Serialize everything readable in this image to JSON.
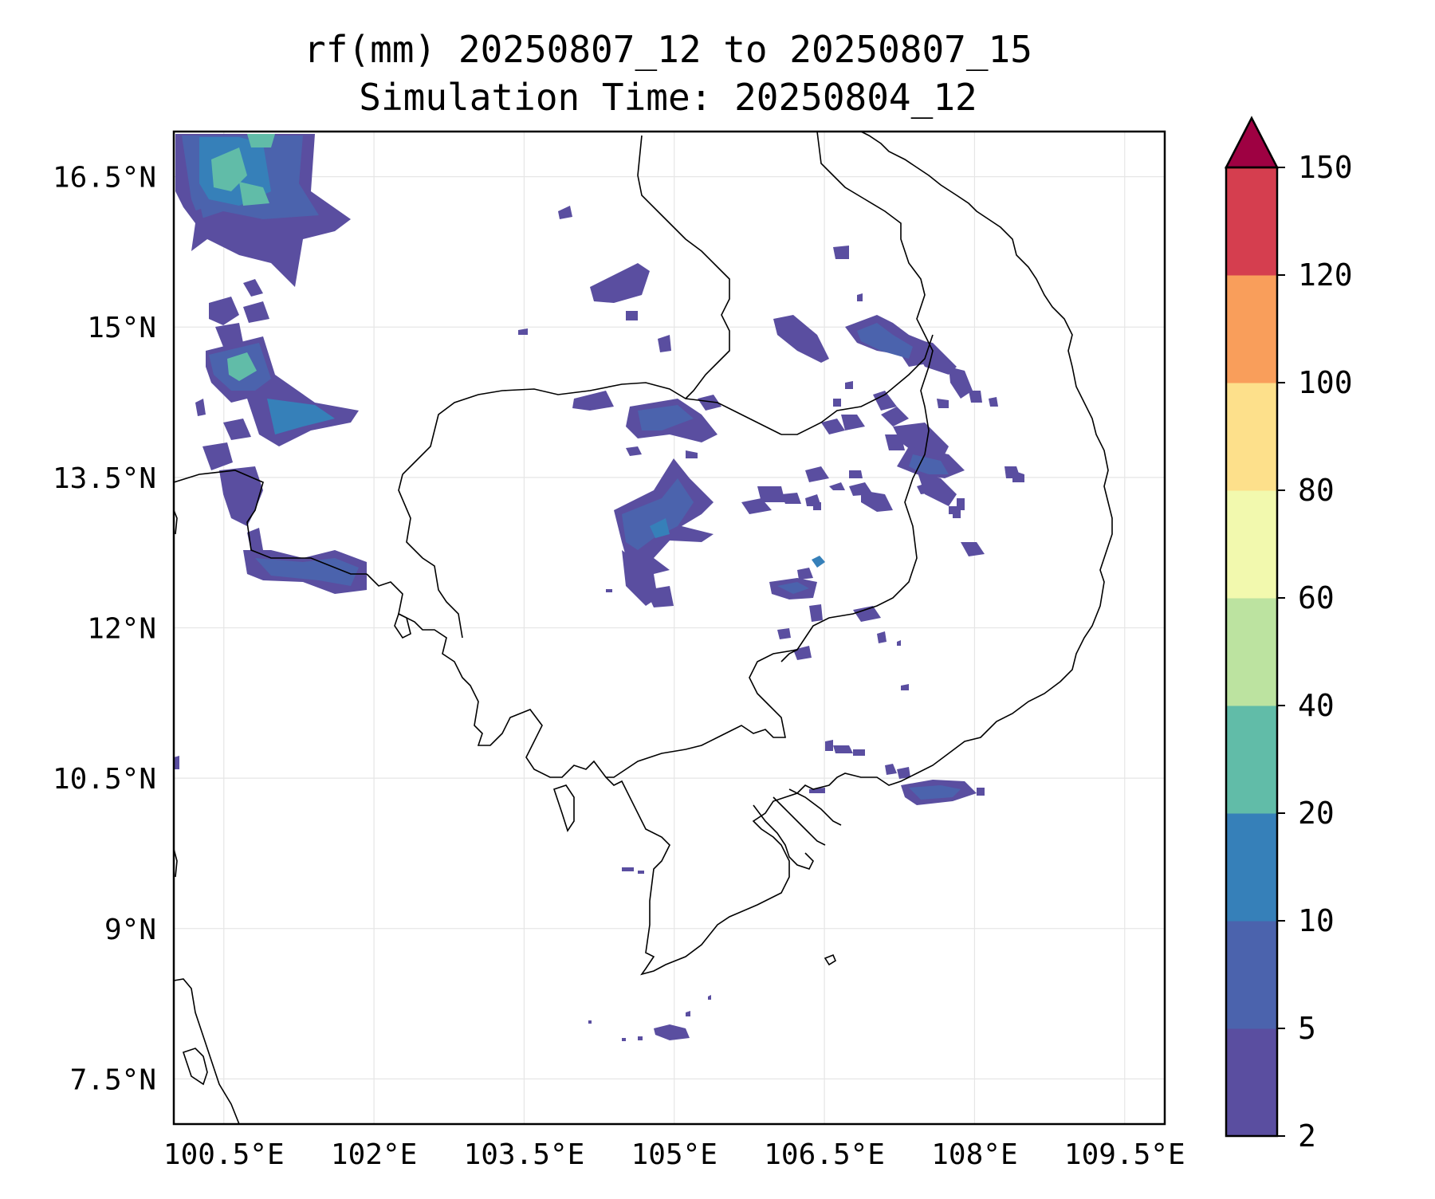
{
  "title_line1": "rf(mm) 20250807_12 to 20250807_15",
  "title_line2": "Simulation Time: 20250804_12",
  "map": {
    "lon_range": [
      100.0,
      109.9
    ],
    "lat_range": [
      7.05,
      16.95
    ],
    "x_ticks": [
      {
        "value": 100.5,
        "label": "100.5°E"
      },
      {
        "value": 102.0,
        "label": "102°E"
      },
      {
        "value": 103.5,
        "label": "103.5°E"
      },
      {
        "value": 105.0,
        "label": "105°E"
      },
      {
        "value": 106.5,
        "label": "106.5°E"
      },
      {
        "value": 108.0,
        "label": "108°E"
      },
      {
        "value": 109.5,
        "label": "109.5°E"
      }
    ],
    "y_ticks": [
      {
        "value": 16.5,
        "label": "16.5°N"
      },
      {
        "value": 15.0,
        "label": "15°N"
      },
      {
        "value": 13.5,
        "label": "13.5°N"
      },
      {
        "value": 12.0,
        "label": "12°N"
      },
      {
        "value": 10.5,
        "label": "10.5°N"
      },
      {
        "value": 9.0,
        "label": "9°N"
      },
      {
        "value": 7.5,
        "label": "7.5°N"
      }
    ],
    "grid": true
  },
  "colorbar": {
    "levels": [
      "2",
      "5",
      "10",
      "20",
      "40",
      "60",
      "80",
      "100",
      "120",
      "150"
    ],
    "colors": [
      "#5a4ea0",
      "#4b63ad",
      "#3680b9",
      "#61bca8",
      "#bce3a0",
      "#f2f9ae",
      "#fde08b",
      "#f99e5b",
      "#d53e4f"
    ],
    "extend_color": "#9e0142"
  },
  "colors": {
    "light": "#5a4ea0",
    "medium": "#4b63ad",
    "heavy": "#3680b9",
    "intense": "#61bca8"
  }
}
